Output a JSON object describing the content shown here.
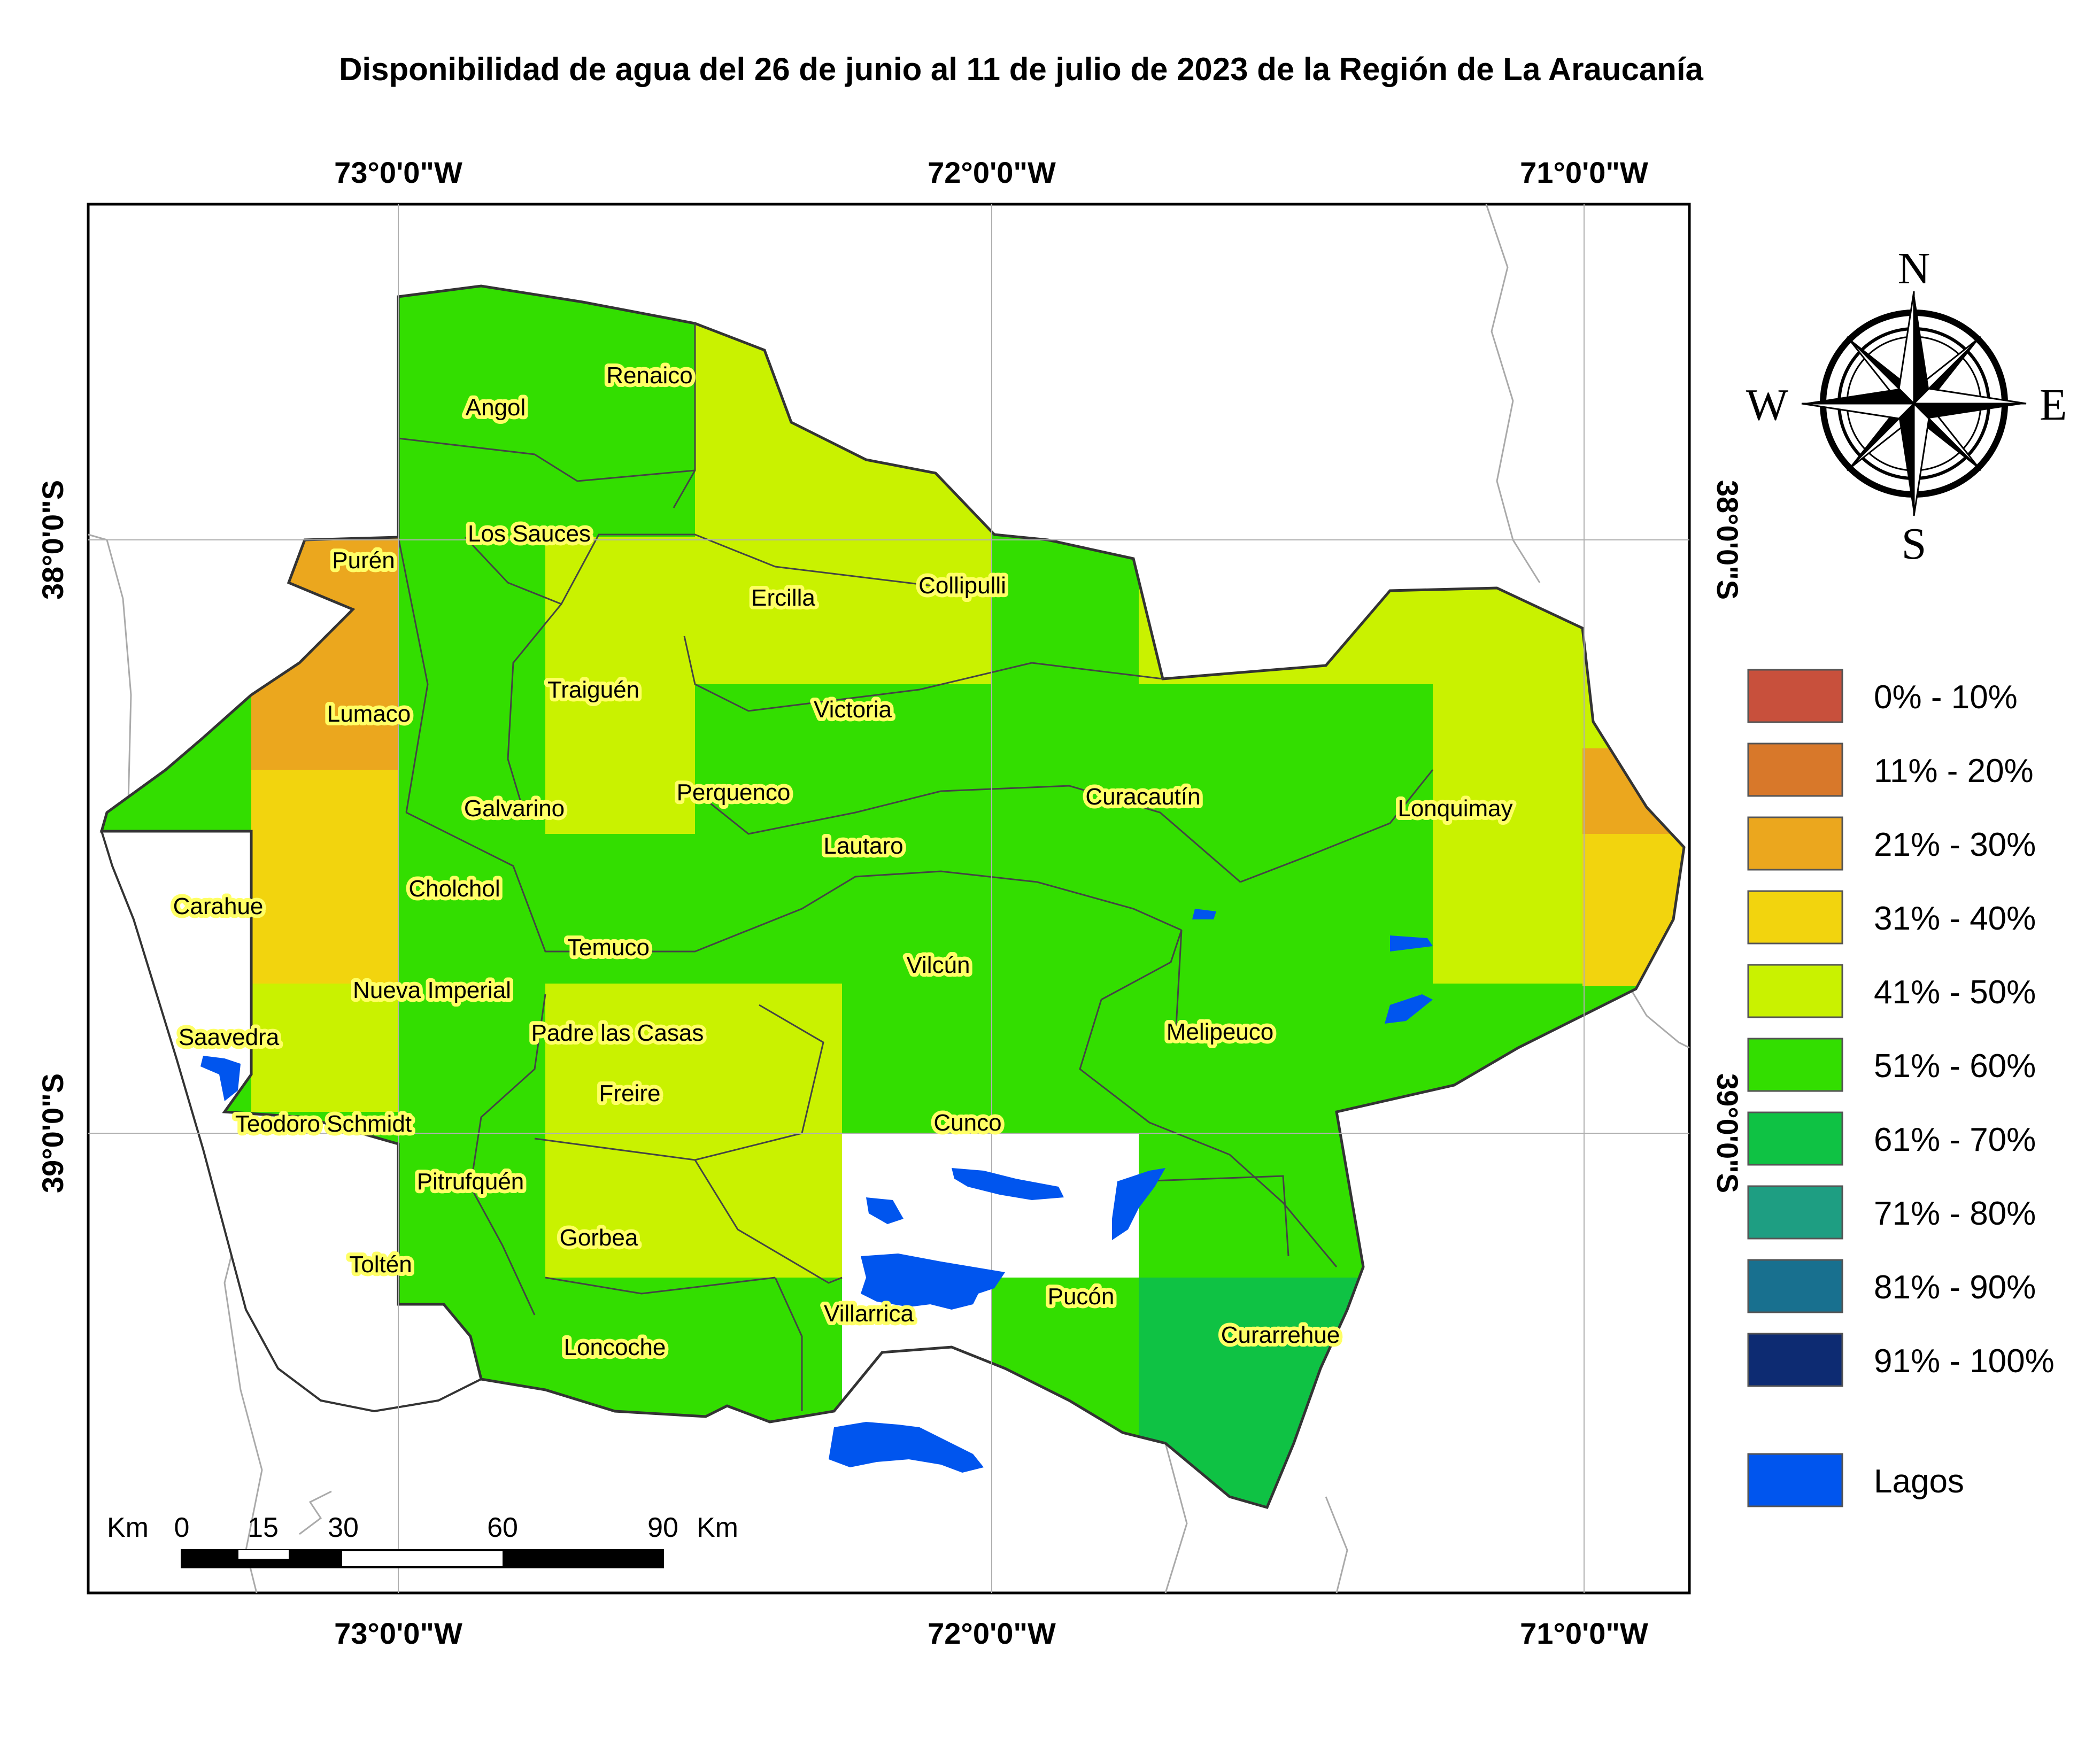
{
  "title": "Disponibilidad de agua del 26 de junio al 11 de julio de 2023 de la Región de La Araucanía",
  "coords": {
    "top": [
      "73°0'0\"W",
      "72°0'0\"W",
      "71°0'0\"W"
    ],
    "bottom": [
      "73°0'0\"W",
      "72°0'0\"W",
      "71°0'0\"W"
    ],
    "left": [
      "38°0'0\"S",
      "39°0'0\"S"
    ],
    "right": [
      "38°0'0\"S",
      "39°0'0\"S"
    ]
  },
  "towns": [
    {
      "name": "Angol"
    },
    {
      "name": "Renaico"
    },
    {
      "name": "Los Sauces"
    },
    {
      "name": "Purén"
    },
    {
      "name": "Ercilla"
    },
    {
      "name": "Collipulli"
    },
    {
      "name": "Traiguén"
    },
    {
      "name": "Victoria"
    },
    {
      "name": "Lumaco"
    },
    {
      "name": "Perquenco"
    },
    {
      "name": "Galvarino"
    },
    {
      "name": "Curacautín"
    },
    {
      "name": "Lonquimay"
    },
    {
      "name": "Lautaro"
    },
    {
      "name": "Cholchol"
    },
    {
      "name": "Carahue"
    },
    {
      "name": "Temuco"
    },
    {
      "name": "Vilcún"
    },
    {
      "name": "Nueva Imperial"
    },
    {
      "name": "Saavedra"
    },
    {
      "name": "Padre las Casas"
    },
    {
      "name": "Melipeuco"
    },
    {
      "name": "Freire"
    },
    {
      "name": "Cunco"
    },
    {
      "name": "Teodoro Schmidt"
    },
    {
      "name": "Pitrufquén"
    },
    {
      "name": "Gorbea"
    },
    {
      "name": "Toltén"
    },
    {
      "name": "Villarrica"
    },
    {
      "name": "Pucón"
    },
    {
      "name": "Curarrehue"
    },
    {
      "name": "Loncoche"
    }
  ],
  "legend": {
    "items": [
      {
        "label": "0% - 10%",
        "color": "#c8503c"
      },
      {
        "label": "11% - 20%",
        "color": "#d8782a"
      },
      {
        "label": "21% - 30%",
        "color": "#eba71e"
      },
      {
        "label": "31% - 40%",
        "color": "#f2d40e"
      },
      {
        "label": "41% - 50%",
        "color": "#c9f200"
      },
      {
        "label": "51% - 60%",
        "color": "#33de00"
      },
      {
        "label": "61% - 70%",
        "color": "#0fc244"
      },
      {
        "label": "71% - 80%",
        "color": "#1e9e82"
      },
      {
        "label": "81% - 90%",
        "color": "#18708f"
      },
      {
        "label": "91% - 100%",
        "color": "#0d2b72"
      }
    ],
    "lakes": {
      "label": "Lagos",
      "color": "#0055ee"
    }
  },
  "compass": {
    "n": "N",
    "s": "S",
    "e": "E",
    "w": "W"
  },
  "scale": {
    "unit_left": "Km",
    "ticks": [
      "0",
      "15",
      "30",
      "60",
      "90"
    ],
    "unit_right": "Km"
  }
}
